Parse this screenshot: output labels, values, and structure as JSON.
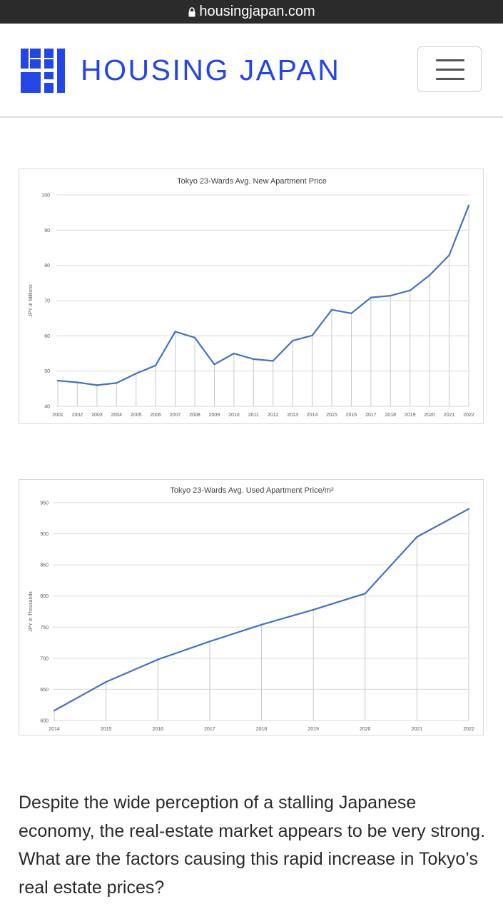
{
  "browser": {
    "url": "housingjapan.com"
  },
  "header": {
    "brand": "HOUSING JAPAN",
    "brand_color": "#2446e8"
  },
  "article": {
    "paragraph": "Despite the wide perception of a stalling Japanese economy, the real-estate market appears to be very strong. What are the factors causing this rapid increase in Tokyo’s real estate prices?"
  },
  "chart_data": [
    {
      "type": "line",
      "title": "Tokyo 23-Wards Avg. New Apartment Price",
      "xlabel": "",
      "ylabel": "JPY in Millions",
      "ylim": [
        40,
        100
      ],
      "yticks": [
        40,
        50,
        60,
        70,
        80,
        90,
        100
      ],
      "grid": true,
      "legend": "none",
      "line_color": "#4472c4",
      "categories": [
        "2001",
        "2002",
        "2003",
        "2004",
        "2005",
        "2006",
        "2007",
        "2008",
        "2009",
        "2010",
        "2011",
        "2012",
        "2013",
        "2014",
        "2015",
        "2016",
        "2017",
        "2018",
        "2019",
        "2020",
        "2021",
        "2022"
      ],
      "values": [
        47.3,
        46.8,
        46.0,
        46.6,
        49.3,
        51.6,
        61.2,
        59.5,
        51.9,
        55.0,
        53.4,
        52.9,
        58.6,
        60.1,
        67.4,
        66.4,
        70.9,
        71.4,
        72.9,
        77.2,
        82.9,
        97.0
      ]
    },
    {
      "type": "line",
      "title": "Tokyo 23-Wards Avg. Used Apartment Price/m²",
      "xlabel": "",
      "ylabel": "JPY in Thousands",
      "ylim": [
        600,
        950
      ],
      "yticks": [
        600,
        650,
        700,
        750,
        800,
        850,
        900,
        950
      ],
      "grid": true,
      "legend": "none",
      "line_color": "#4472c4",
      "categories": [
        "2014",
        "2015",
        "2016",
        "2017",
        "2018",
        "2019",
        "2020",
        "2021",
        "2022"
      ],
      "values": [
        616,
        662,
        698,
        727,
        754,
        778,
        804,
        895,
        940
      ]
    }
  ]
}
